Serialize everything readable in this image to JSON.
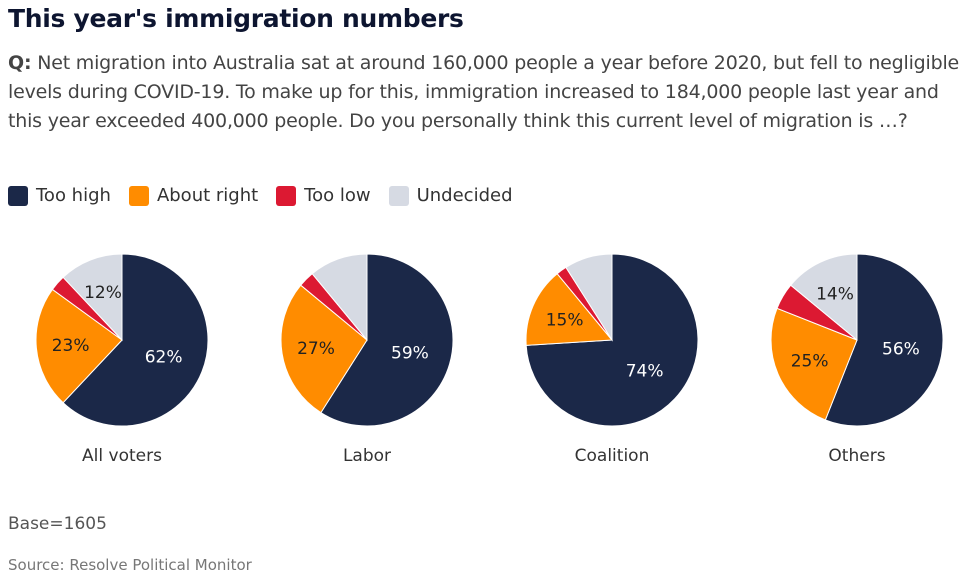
{
  "header": {
    "title": "This year's immigration numbers",
    "question_prefix": "Q:",
    "question_text": " Net migration into Australia sat at around 160,000 people a year before 2020, but fell to negligible levels during COVID-19. To make up for this, immigration increased to 184,000 people last year and this year exceeded 400,000 people. Do you personally think this current level of migration is …?"
  },
  "footer": {
    "base": "Base=1605",
    "source": "Source: Resolve Political Monitor"
  },
  "chart_data": {
    "type": "pie",
    "title": "This year's immigration numbers",
    "legend": [
      {
        "name": "Too high",
        "color": "#1b2848"
      },
      {
        "name": "About right",
        "color": "#ff8c00"
      },
      {
        "name": "Too low",
        "color": "#dc1932"
      },
      {
        "name": "Undecided",
        "color": "#d6dae3"
      }
    ],
    "legend_position": "top-left",
    "pies": [
      {
        "label": "All voters",
        "values": [
          62,
          23,
          3,
          12
        ],
        "data_labels": [
          "62%",
          "23%",
          "",
          "12%"
        ]
      },
      {
        "label": "Labor",
        "values": [
          59,
          27,
          3,
          11
        ],
        "data_labels": [
          "59%",
          "27%",
          "",
          ""
        ]
      },
      {
        "label": "Coalition",
        "values": [
          74,
          15,
          2,
          9
        ],
        "data_labels": [
          "74%",
          "15%",
          "",
          ""
        ]
      },
      {
        "label": "Others",
        "values": [
          56,
          25,
          5,
          14
        ],
        "data_labels": [
          "56%",
          "25%",
          "",
          "14%"
        ]
      }
    ]
  }
}
